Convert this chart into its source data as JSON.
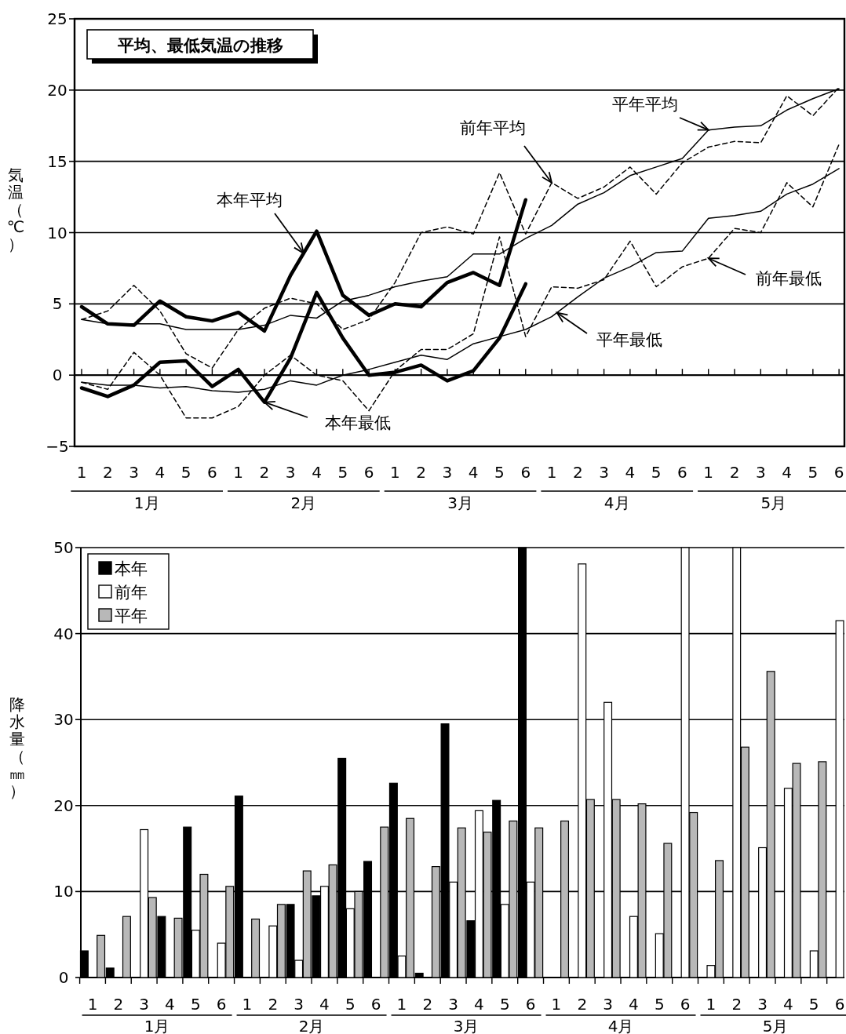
{
  "chart_data": [
    {
      "type": "line",
      "title": "平均、最低気温の推移",
      "ylabel": "気温（℃）",
      "categories": [
        "1",
        "2",
        "3",
        "4",
        "5",
        "6",
        "1",
        "2",
        "3",
        "4",
        "5",
        "6",
        "1",
        "2",
        "3",
        "4",
        "5",
        "6",
        "1",
        "2",
        "3",
        "4",
        "5",
        "6",
        "1",
        "2",
        "3",
        "4",
        "5",
        "6"
      ],
      "annotations": [
        "1月",
        "2月",
        "3月",
        "4月",
        "5月"
      ],
      "ylim": [
        -5,
        25
      ],
      "yticks": [
        {
          "value": -5,
          "label": "−5"
        },
        0,
        5,
        10,
        15,
        20,
        25
      ],
      "grid": "y",
      "series": [
        {
          "name": "本年平均",
          "color": "#000000",
          "line_style": "solid",
          "values": [
            4.8,
            3.6,
            3.5,
            5.2,
            4.1,
            3.8,
            4.4,
            3.1,
            7.0,
            10.1,
            5.6,
            4.2,
            5.0,
            4.8,
            6.5,
            7.2,
            6.3,
            12.3,
            null,
            null,
            null,
            null,
            null,
            null,
            null,
            null,
            null,
            null,
            null,
            null
          ]
        },
        {
          "name": "本年最低",
          "color": "#000000",
          "line_style": "solid",
          "values": [
            -0.9,
            -1.5,
            -0.7,
            0.9,
            1.0,
            -0.8,
            0.4,
            -1.9,
            1.2,
            5.8,
            2.6,
            0.0,
            0.2,
            0.7,
            -0.4,
            0.3,
            2.6,
            6.4,
            null,
            null,
            null,
            null,
            null,
            null,
            null,
            null,
            null,
            null,
            null,
            null
          ]
        },
        {
          "name": "前年平均",
          "color": "#000000",
          "line_style": "dashed",
          "values": [
            3.9,
            4.5,
            6.3,
            4.5,
            1.5,
            0.5,
            3.2,
            4.7,
            5.4,
            5.0,
            3.2,
            3.9,
            6.5,
            10.0,
            10.4,
            9.9,
            14.2,
            9.9,
            13.5,
            12.4,
            13.2,
            14.6,
            12.7,
            14.9,
            16.0,
            16.4,
            16.3,
            19.6,
            18.2,
            20.2
          ]
        },
        {
          "name": "前年最低",
          "color": "#000000",
          "line_style": "dashed",
          "values": [
            -0.5,
            -1.0,
            1.6,
            0.0,
            -3.0,
            -3.0,
            -2.2,
            0.0,
            1.4,
            0.0,
            -0.4,
            -2.5,
            0.3,
            1.8,
            1.8,
            2.9,
            9.7,
            2.7,
            6.2,
            6.1,
            6.7,
            9.4,
            6.2,
            7.6,
            8.2,
            10.3,
            10.0,
            13.5,
            11.8,
            16.2
          ]
        },
        {
          "name": "平年平均",
          "color": "#000000",
          "line_style": "solid",
          "values": [
            3.9,
            3.6,
            3.6,
            3.6,
            3.2,
            3.2,
            3.2,
            3.5,
            4.2,
            4.0,
            5.2,
            5.6,
            6.2,
            6.6,
            6.9,
            8.5,
            8.5,
            9.6,
            10.5,
            12.0,
            12.8,
            14.0,
            14.6,
            15.2,
            17.2,
            17.4,
            17.5,
            18.6,
            19.4,
            20.1
          ]
        },
        {
          "name": "平年最低",
          "color": "#000000",
          "line_style": "solid",
          "values": [
            -0.5,
            -0.7,
            -0.7,
            -0.9,
            -0.8,
            -1.1,
            -1.2,
            -1.0,
            -0.4,
            -0.7,
            0.0,
            0.4,
            0.9,
            1.4,
            1.1,
            2.2,
            2.7,
            3.2,
            4.1,
            5.5,
            6.8,
            7.6,
            8.6,
            8.7,
            11.0,
            11.2,
            11.5,
            12.7,
            13.4,
            14.5
          ]
        }
      ]
    },
    {
      "type": "bar",
      "ylabel": "降水量（㎜）",
      "categories": [
        "1",
        "2",
        "3",
        "4",
        "5",
        "6",
        "1",
        "2",
        "3",
        "4",
        "5",
        "6",
        "1",
        "2",
        "3",
        "4",
        "5",
        "6",
        "1",
        "2",
        "3",
        "4",
        "5",
        "6",
        "1",
        "2",
        "3",
        "4",
        "5",
        "6"
      ],
      "annotations": [
        "1月",
        "2月",
        "3月",
        "4月",
        "5月"
      ],
      "ylim": [
        0,
        50
      ],
      "yticks": [
        0,
        10,
        20,
        30,
        40,
        50
      ],
      "grid": "y",
      "legend": "top left",
      "series": [
        {
          "name": "本年",
          "color": "#000000",
          "values": [
            3.1,
            1.1,
            0,
            7.1,
            17.5,
            0,
            21.1,
            0,
            8.5,
            9.5,
            25.5,
            13.5,
            22.6,
            0.5,
            29.5,
            6.6,
            20.6,
            50,
            null,
            null,
            null,
            null,
            null,
            null,
            null,
            null,
            null,
            null,
            null,
            null
          ]
        },
        {
          "name": "前年",
          "color": "#ffffff",
          "values": [
            0,
            0,
            17.2,
            0,
            5.5,
            4.0,
            0,
            6.0,
            2.0,
            10.6,
            8.0,
            0,
            2.5,
            0,
            11.1,
            19.4,
            8.5,
            11.1,
            0,
            48.1,
            32.0,
            7.1,
            5.1,
            50,
            1.4,
            50,
            15.1,
            22.0,
            3.1,
            41.5
          ]
        },
        {
          "name": "平年",
          "color": "#b8b8b8",
          "values": [
            4.9,
            7.1,
            9.3,
            6.9,
            12.0,
            10.6,
            6.8,
            8.5,
            12.4,
            13.1,
            10.0,
            17.5,
            18.5,
            12.9,
            17.4,
            16.9,
            18.2,
            17.4,
            18.2,
            20.7,
            20.7,
            20.2,
            15.6,
            19.2,
            13.6,
            26.8,
            35.6,
            24.9,
            25.1,
            null
          ]
        }
      ]
    }
  ]
}
